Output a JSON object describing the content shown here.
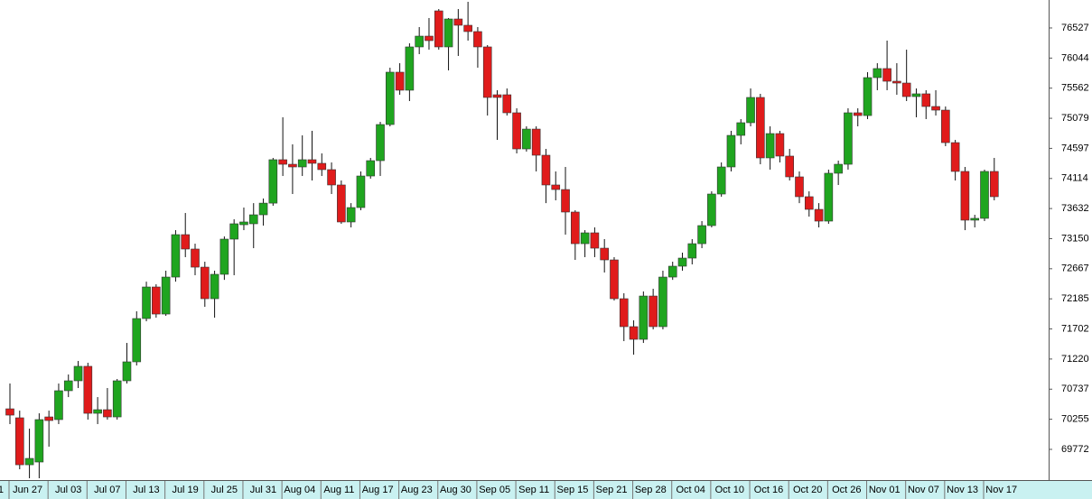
{
  "chart_data": {
    "type": "candlestick",
    "categories": [
      "1",
      null,
      null,
      null,
      "Jun 27",
      null,
      null,
      null,
      "Jul 03",
      null,
      null,
      null,
      "Jul 07",
      null,
      null,
      null,
      "Jul 13",
      null,
      null,
      null,
      "Jul 19",
      null,
      null,
      null,
      "Jul 25",
      null,
      null,
      null,
      "Jul 31",
      null,
      null,
      null,
      "Aug 04",
      null,
      null,
      null,
      "Aug 11",
      null,
      null,
      null,
      "Aug 17",
      null,
      null,
      null,
      "Aug 23",
      null,
      null,
      null,
      "Aug 30",
      null,
      null,
      null,
      "Sep 05",
      null,
      null,
      null,
      "Sep 11",
      null,
      null,
      null,
      "Sep 15",
      null,
      null,
      null,
      "Sep 21",
      null,
      null,
      null,
      "Sep 28",
      null,
      null,
      null,
      "Oct 04",
      null,
      null,
      null,
      "Oct 10",
      null,
      null,
      null,
      "Oct 16",
      null,
      null,
      null,
      "Oct 20",
      null,
      null,
      null,
      "Oct 26",
      null,
      null,
      null,
      "Nov 01",
      null,
      null,
      null,
      "Nov 07",
      null,
      null,
      null,
      "Nov 13",
      null,
      null,
      null,
      "Nov 17",
      null
    ],
    "open": [
      null,
      null,
      null,
      null,
      70422,
      70278,
      69525,
      69569,
      70292,
      70249,
      70712,
      70871,
      71103,
      70350,
      70408,
      70292,
      70871,
      71175,
      71869,
      72375,
      71941,
      72534,
      73214,
      72983,
      72693,
      72187,
      72578,
      73142,
      73373,
      73388,
      73532,
      73719,
      74415,
      74342,
      74299,
      74415,
      74357,
      74256,
      74010,
      73417,
      73648,
      74154,
      74400,
      74979,
      75818,
      75529,
      76223,
      76396,
      76801,
      76223,
      76671,
      76570,
      76469,
      76223,
      75456,
      75456,
      75167,
      74588,
      74906,
      74487,
      74010,
      73937,
      73576,
      73069,
      73243,
      72997,
      72809,
      72187,
      71739,
      71536,
      72230,
      71739,
      72534,
      72708,
      72838,
      73069,
      73359,
      73865,
      74299,
      74805,
      75008,
      75413,
      74444,
      74834,
      74473,
      74140,
      73822,
      73619,
      73431,
      74198,
      74342,
      75167,
      75123,
      75731,
      75876,
      75673,
      75644,
      75427,
      75471,
      75268,
      75210,
      74689,
      74227,
      73446,
      73475,
      74227
    ],
    "high": [
      null,
      null,
      null,
      null,
      70827,
      70393,
      70104,
      70350,
      70393,
      70827,
      70972,
      71189,
      71160,
      70610,
      70755,
      70900,
      71478,
      71985,
      72460,
      72418,
      72636,
      73286,
      73561,
      73069,
      72780,
      72636,
      73185,
      73460,
      73648,
      73719,
      73793,
      74444,
      75095,
      74661,
      74805,
      74878,
      74516,
      74371,
      74082,
      73719,
      74227,
      74444,
      75022,
      75890,
      75962,
      76281,
      76541,
      76686,
      76830,
      76686,
      76830,
      76946,
      76541,
      76252,
      75529,
      75557,
      75239,
      74950,
      74950,
      74588,
      74227,
      74299,
      73605,
      73286,
      73330,
      73142,
      72853,
      72274,
      71840,
      72303,
      72346,
      72636,
      72780,
      72925,
      73142,
      73431,
      73908,
      74371,
      74878,
      75066,
      75557,
      75471,
      74950,
      74878,
      74588,
      74227,
      73908,
      73719,
      74256,
      74400,
      75239,
      75239,
      75818,
      75962,
      76324,
      75962,
      76179,
      75557,
      75529,
      75529,
      75268,
      74733,
      74299,
      73532,
      74256,
      74444
    ],
    "low": [
      null,
      null,
      null,
      null,
      70177,
      69453,
      69309,
      69309,
      69815,
      70177,
      70610,
      70755,
      70249,
      70177,
      70249,
      70249,
      70827,
      71117,
      71825,
      71883,
      71912,
      72460,
      72853,
      72563,
      72057,
      71883,
      72489,
      72563,
      73286,
      72997,
      73359,
      73677,
      74154,
      73865,
      74154,
      74082,
      74154,
      73865,
      73388,
      73330,
      73605,
      74111,
      74154,
      74950,
      75456,
      75355,
      76107,
      76179,
      76179,
      75847,
      76078,
      76324,
      75890,
      75123,
      74733,
      75123,
      74516,
      74545,
      74227,
      73719,
      73764,
      73214,
      72809,
      72853,
      72853,
      72607,
      72158,
      71507,
      71290,
      71478,
      71695,
      71695,
      72489,
      72636,
      72737,
      72997,
      73330,
      73822,
      74227,
      74661,
      74950,
      74342,
      74256,
      74371,
      74082,
      73719,
      73503,
      73330,
      73388,
      74010,
      74256,
      74950,
      75066,
      75529,
      75529,
      75456,
      75355,
      75095,
      75066,
      75123,
      74632,
      74082,
      73286,
      73330,
      73431,
      73764
    ],
    "close": [
      null,
      null,
      null,
      null,
      70321,
      69525,
      69627,
      70249,
      70234,
      70712,
      70871,
      71103,
      70350,
      70408,
      70292,
      70871,
      71175,
      71869,
      72375,
      71941,
      72534,
      73214,
      72983,
      72693,
      72187,
      72578,
      73142,
      73388,
      73417,
      73532,
      73719,
      74415,
      74342,
      74299,
      74415,
      74357,
      74256,
      74010,
      73417,
      73648,
      74154,
      74400,
      74979,
      75818,
      75529,
      76223,
      76396,
      76324,
      76223,
      76671,
      76570,
      76469,
      76223,
      75413,
      75413,
      75167,
      74588,
      74906,
      74487,
      74010,
      73937,
      73576,
      73069,
      73243,
      72997,
      72809,
      72187,
      71739,
      71536,
      72230,
      71739,
      72534,
      72708,
      72838,
      73069,
      73359,
      73865,
      74299,
      74805,
      75008,
      75413,
      74444,
      74834,
      74473,
      74140,
      73822,
      73619,
      73431,
      74198,
      74342,
      75167,
      75123,
      75731,
      75876,
      75673,
      75644,
      75427,
      75471,
      75268,
      75210,
      74689,
      74227,
      73446,
      73475,
      74227,
      73822
    ],
    "up_color": "#1fa51f",
    "down_color": "#e01b1b",
    "ylim": [
      69280,
      76975
    ],
    "yticks": [
      76527,
      76044,
      75562,
      75079,
      74597,
      74114,
      73632,
      73150,
      72667,
      72185,
      71702,
      71220,
      70737,
      70255,
      69772
    ]
  }
}
